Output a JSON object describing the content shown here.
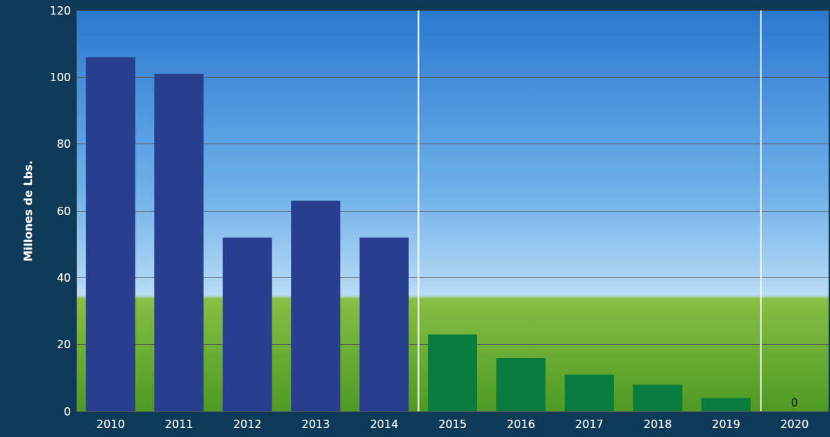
{
  "chart_data": {
    "type": "bar",
    "categories": [
      "2010",
      "2011",
      "2012",
      "2013",
      "2014",
      "2015",
      "2016",
      "2017",
      "2018",
      "2019",
      "2020"
    ],
    "values": [
      106,
      101,
      52,
      63,
      52,
      23,
      16,
      11,
      8,
      4,
      0
    ],
    "colors": [
      "#283f8f",
      "#283f8f",
      "#283f8f",
      "#283f8f",
      "#283f8f",
      "#0a7c3e",
      "#0a7c3e",
      "#0a7c3e",
      "#0a7c3e",
      "#0a7c3e",
      "#0a7c3e"
    ],
    "ylabel": "Millones de Lbs.",
    "ylim": [
      0,
      120
    ],
    "yticks": [
      0,
      20,
      40,
      60,
      80,
      100,
      120
    ],
    "grid": true,
    "data_labels": true,
    "value_labels": [
      null,
      null,
      null,
      null,
      null,
      null,
      null,
      null,
      null,
      null,
      "0"
    ]
  }
}
